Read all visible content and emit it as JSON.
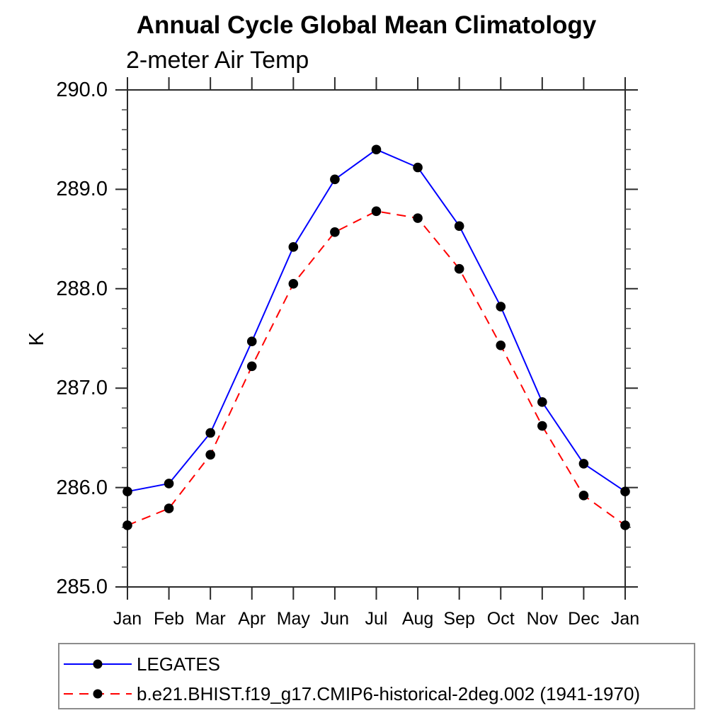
{
  "header": {
    "title": "Annual Cycle Global Mean Climatology",
    "subtitle": "2-meter Air Temp"
  },
  "axes": {
    "ylabel": "K",
    "ytick_labels": [
      "290.0",
      "289.0",
      "288.0",
      "287.0",
      "286.0",
      "285.0"
    ],
    "xtick_labels": [
      "Jan",
      "Feb",
      "Mar",
      "Apr",
      "May",
      "Jun",
      "Jul",
      "Aug",
      "Sep",
      "Oct",
      "Nov",
      "Dec",
      "Jan"
    ]
  },
  "colors": {
    "axis": "#2a2a2a",
    "minor_tick": "#555555",
    "marker": "#000000",
    "series1": "#0000ff",
    "series2": "#ff0000",
    "legend_border": "#8c8c8c"
  },
  "chart_data": {
    "type": "line",
    "title": "Annual Cycle Global Mean Climatology",
    "subtitle": "2-meter Air Temp",
    "xlabel": "",
    "ylabel": "K",
    "ylim": [
      285.0,
      290.0
    ],
    "ytick_interval_major": 1.0,
    "ytick_interval_minor": 0.2,
    "grid": false,
    "legend_position": "below-plot-left",
    "categories": [
      "Jan",
      "Feb",
      "Mar",
      "Apr",
      "May",
      "Jun",
      "Jul",
      "Aug",
      "Sep",
      "Oct",
      "Nov",
      "Dec",
      "Jan"
    ],
    "series": [
      {
        "name": "LEGATES",
        "color": "#0000ff",
        "line_style": "solid",
        "marker": "filled-circle",
        "marker_color": "#000000",
        "values": [
          285.96,
          286.04,
          286.55,
          287.47,
          288.42,
          289.1,
          289.4,
          289.22,
          288.63,
          287.82,
          286.86,
          286.24,
          285.96
        ]
      },
      {
        "name": "b.e21.BHIST.f19_g17.CMIP6-historical-2deg.002 (1941-1970)",
        "color": "#ff0000",
        "line_style": "dashed",
        "marker": "filled-circle",
        "marker_color": "#000000",
        "values": [
          285.62,
          285.79,
          286.33,
          287.22,
          288.05,
          288.57,
          288.78,
          288.71,
          288.2,
          287.43,
          286.62,
          285.92,
          285.62
        ]
      }
    ]
  }
}
